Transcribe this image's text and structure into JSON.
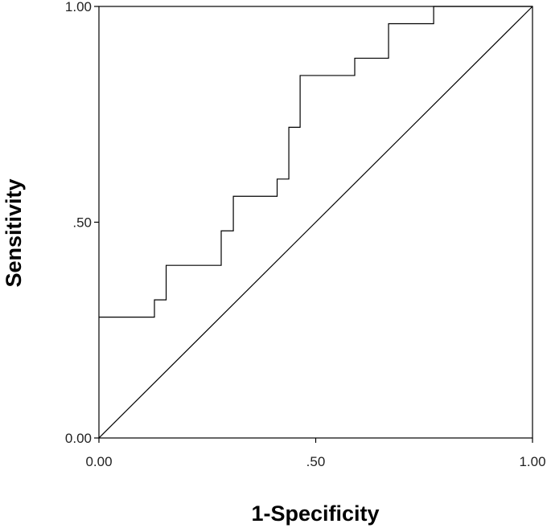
{
  "chart_data": {
    "type": "line",
    "title": "",
    "xlabel": "1-Specificity",
    "ylabel": "Sensitivity",
    "xlim": [
      0,
      1
    ],
    "ylim": [
      0,
      1
    ],
    "x_ticks": [
      {
        "value": 0.0,
        "label": "0.00"
      },
      {
        "value": 0.5,
        "label": ".50"
      },
      {
        "value": 1.0,
        "label": "1.00"
      }
    ],
    "y_ticks": [
      {
        "value": 0.0,
        "label": "0.00"
      },
      {
        "value": 0.5,
        "label": ".50"
      },
      {
        "value": 1.0,
        "label": "1.00"
      }
    ],
    "grid": false,
    "legend": "none",
    "series": [
      {
        "kind": "step",
        "points": [
          [
            0.0,
            0.28
          ],
          [
            0.128,
            0.28
          ],
          [
            0.128,
            0.32
          ],
          [
            0.155,
            0.32
          ],
          [
            0.155,
            0.4
          ],
          [
            0.282,
            0.4
          ],
          [
            0.282,
            0.48
          ],
          [
            0.31,
            0.48
          ],
          [
            0.31,
            0.56
          ],
          [
            0.411,
            0.56
          ],
          [
            0.411,
            0.6
          ],
          [
            0.438,
            0.6
          ],
          [
            0.438,
            0.72
          ],
          [
            0.464,
            0.72
          ],
          [
            0.464,
            0.84
          ],
          [
            0.59,
            0.84
          ],
          [
            0.59,
            0.88
          ],
          [
            0.668,
            0.88
          ],
          [
            0.668,
            0.96
          ],
          [
            0.772,
            0.96
          ],
          [
            0.772,
            1.0
          ],
          [
            1.0,
            1.0
          ]
        ]
      },
      {
        "kind": "reference",
        "points": [
          [
            0,
            0
          ],
          [
            1,
            1
          ]
        ]
      }
    ],
    "line_color": "#000000"
  }
}
